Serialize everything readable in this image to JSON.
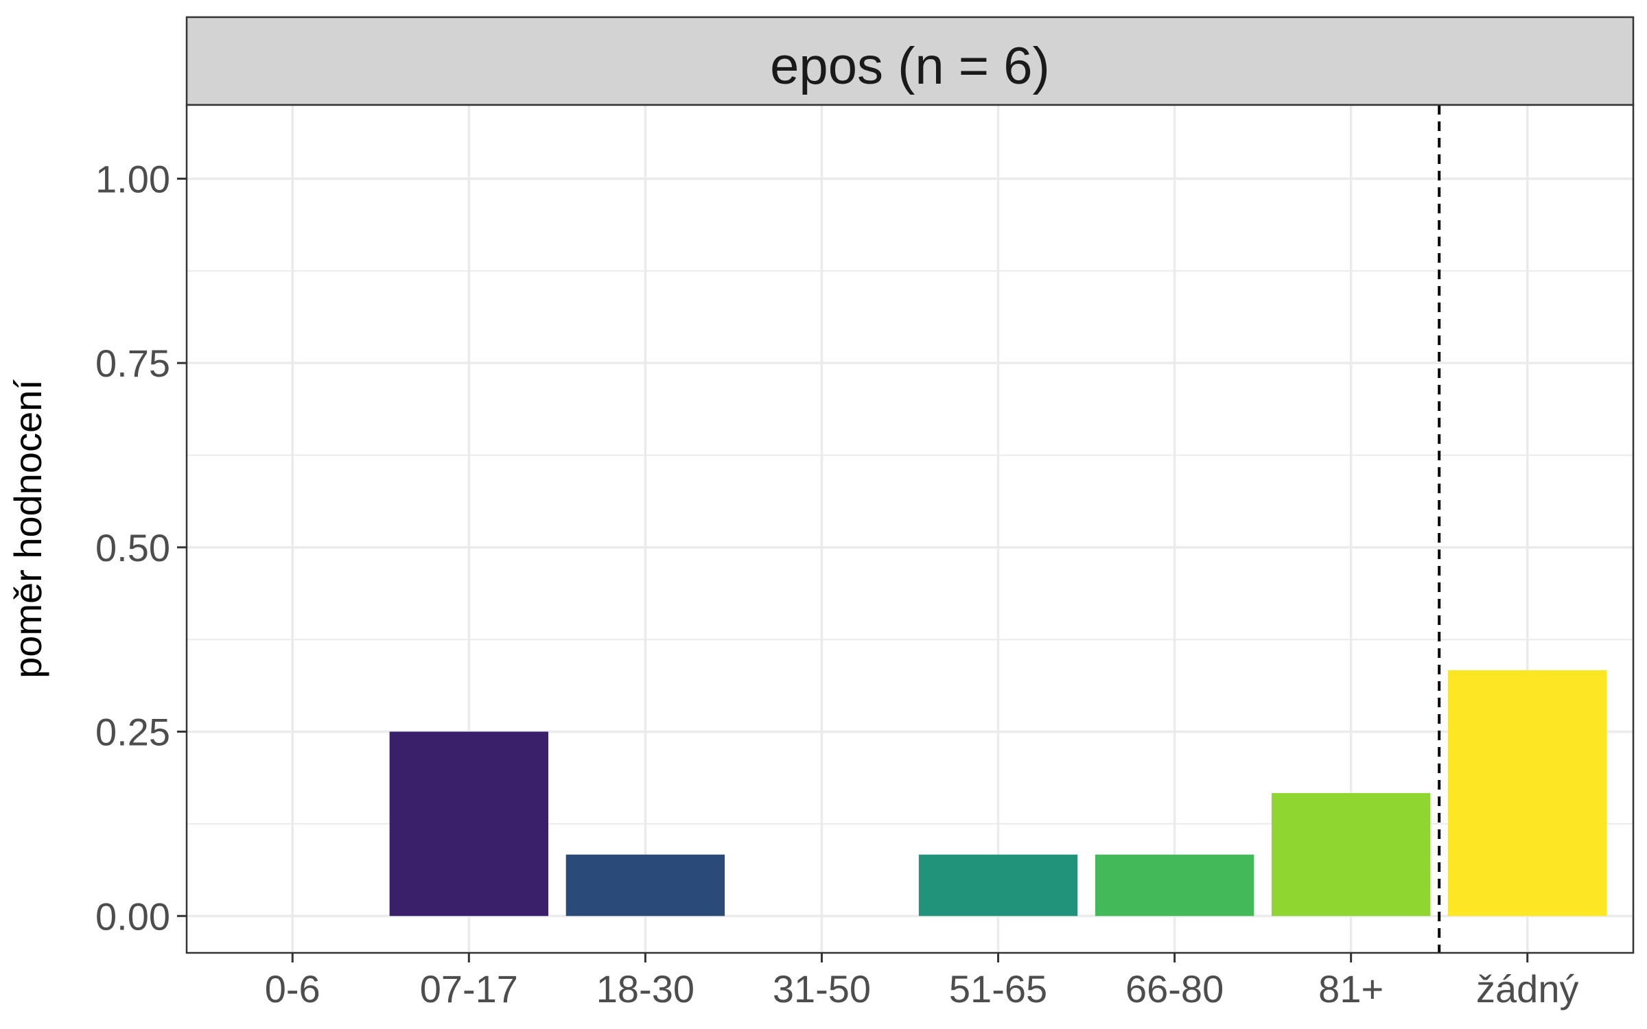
{
  "chart_data": {
    "type": "bar",
    "facet_title": "epos (n = 6)",
    "xlabel": "",
    "ylabel": "poměr hodnocení",
    "categories": [
      "0-6",
      "07-17",
      "18-30",
      "31-50",
      "51-65",
      "66-80",
      "81+",
      "žádný"
    ],
    "values": [
      0,
      0.25,
      0.0833,
      0,
      0.0833,
      0.0833,
      0.1667,
      0.3333
    ],
    "colors": [
      "#440154",
      "#3A1F6A",
      "#2A4A7A",
      "#24868E",
      "#21937A",
      "#44B95A",
      "#8FD631",
      "#FDE725"
    ],
    "y_ticks": [
      "0.00",
      "0.25",
      "0.50",
      "0.75",
      "1.00"
    ],
    "y_tick_values": [
      0,
      0.25,
      0.5,
      0.75,
      1.0
    ],
    "ylim": [
      -0.05,
      1.1
    ],
    "grid": true,
    "reference_line": {
      "type": "vertical-dashed",
      "between": [
        "81+",
        "žádný"
      ]
    }
  }
}
